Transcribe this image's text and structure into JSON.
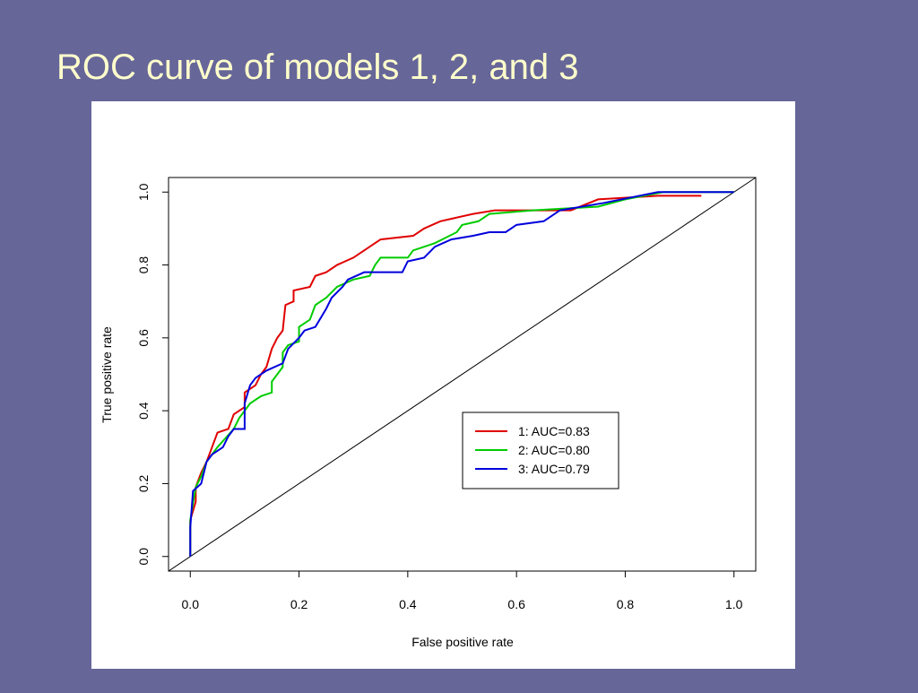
{
  "chart_data": {
    "type": "line",
    "title": "ROC curve of models 1, 2, and 3",
    "x_label": "False positive rate",
    "y_label": "True positive rate",
    "xlim": [
      -0.04,
      1.04
    ],
    "ylim": [
      -0.04,
      1.04
    ],
    "xticks": [
      {
        "value": 0,
        "label": "0.0"
      },
      0.2,
      0.4,
      0.6,
      0.8,
      {
        "value": 1,
        "label": "1.0"
      }
    ],
    "yticks": [
      {
        "value": 0,
        "label": "0.0"
      },
      0.2,
      0.4,
      0.6,
      0.8,
      {
        "value": 1,
        "label": "1.0"
      }
    ],
    "diagonal": true,
    "legend": "bottom-right",
    "series": [
      {
        "name": "1: AUC=0.83",
        "color": "#e00000",
        "x": [
          0,
          0,
          0.01,
          0.01,
          0.02,
          0.03,
          0.04,
          0.05,
          0.07,
          0.08,
          0.1,
          0.1,
          0.12,
          0.13,
          0.14,
          0.15,
          0.16,
          0.17,
          0.175,
          0.19,
          0.19,
          0.22,
          0.23,
          0.25,
          0.27,
          0.3,
          0.33,
          0.35,
          0.41,
          0.43,
          0.46,
          0.52,
          0.56,
          0.7,
          0.75,
          0.86,
          0.94
        ],
        "values": [
          0,
          0.1,
          0.15,
          0.19,
          0.23,
          0.26,
          0.3,
          0.34,
          0.35,
          0.39,
          0.41,
          0.45,
          0.47,
          0.5,
          0.52,
          0.57,
          0.6,
          0.62,
          0.69,
          0.7,
          0.73,
          0.74,
          0.77,
          0.78,
          0.8,
          0.82,
          0.85,
          0.87,
          0.88,
          0.9,
          0.92,
          0.94,
          0.95,
          0.95,
          0.98,
          0.99,
          0.99
        ]
      },
      {
        "name": "2: AUC=0.80",
        "color": "#00cc00",
        "x": [
          0,
          0,
          0.01,
          0.02,
          0.03,
          0.05,
          0.08,
          0.09,
          0.11,
          0.13,
          0.15,
          0.15,
          0.17,
          0.17,
          0.18,
          0.2,
          0.2,
          0.22,
          0.23,
          0.25,
          0.27,
          0.3,
          0.33,
          0.34,
          0.35,
          0.4,
          0.41,
          0.45,
          0.49,
          0.5,
          0.53,
          0.55,
          0.63,
          0.75,
          0.8,
          0.87,
          1
        ],
        "values": [
          0,
          0.1,
          0.19,
          0.22,
          0.26,
          0.3,
          0.35,
          0.38,
          0.42,
          0.44,
          0.45,
          0.48,
          0.52,
          0.56,
          0.58,
          0.59,
          0.63,
          0.65,
          0.69,
          0.71,
          0.74,
          0.76,
          0.77,
          0.8,
          0.82,
          0.82,
          0.84,
          0.86,
          0.89,
          0.91,
          0.92,
          0.94,
          0.95,
          0.96,
          0.98,
          1,
          1
        ]
      },
      {
        "name": "3: AUC=0.79",
        "color": "#0000dd",
        "x": [
          0,
          0,
          0.005,
          0.02,
          0.03,
          0.04,
          0.06,
          0.07,
          0.08,
          0.1,
          0.1,
          0.11,
          0.12,
          0.14,
          0.17,
          0.18,
          0.2,
          0.21,
          0.23,
          0.25,
          0.26,
          0.28,
          0.29,
          0.32,
          0.39,
          0.4,
          0.43,
          0.45,
          0.48,
          0.52,
          0.55,
          0.58,
          0.6,
          0.65,
          0.68,
          0.76,
          0.86,
          1
        ],
        "values": [
          0,
          0.08,
          0.18,
          0.2,
          0.26,
          0.28,
          0.3,
          0.33,
          0.35,
          0.35,
          0.42,
          0.47,
          0.49,
          0.51,
          0.53,
          0.57,
          0.6,
          0.62,
          0.63,
          0.68,
          0.71,
          0.74,
          0.76,
          0.78,
          0.78,
          0.81,
          0.82,
          0.85,
          0.87,
          0.88,
          0.89,
          0.89,
          0.91,
          0.92,
          0.95,
          0.97,
          1,
          1
        ]
      }
    ]
  }
}
